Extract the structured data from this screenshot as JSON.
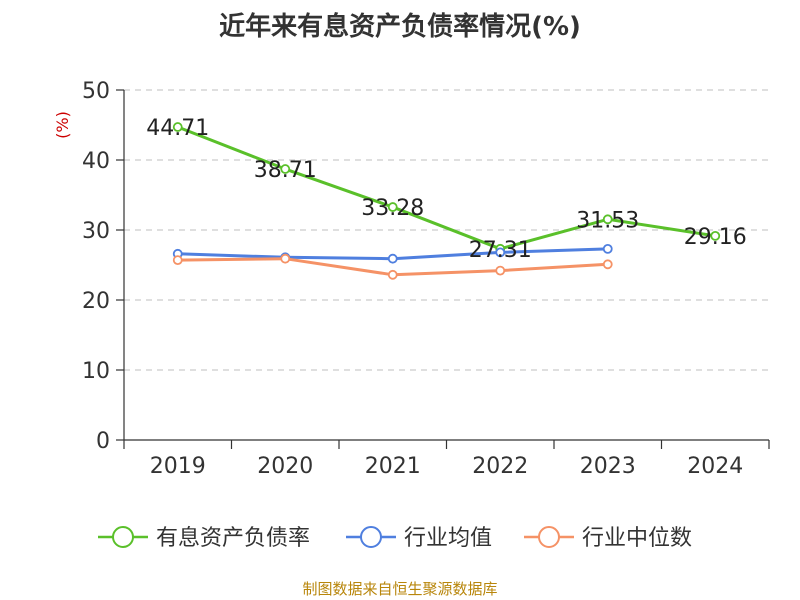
{
  "chart_data": {
    "type": "line",
    "title": "近年来有息资产负债率情况(%)",
    "ylabel": "(%)",
    "xlabel": "",
    "categories": [
      "2019",
      "2020",
      "2021",
      "2022",
      "2023",
      "2024"
    ],
    "yticks": [
      "0",
      "10",
      "20",
      "30",
      "40",
      "50"
    ],
    "ylim": [
      0,
      50
    ],
    "grid": true,
    "legend_position": "bottom",
    "series": [
      {
        "name": "有息资产负债率",
        "color": "#5ac02a",
        "values": [
          44.71,
          38.71,
          33.28,
          27.31,
          31.53,
          29.16
        ],
        "labels": [
          "44.71",
          "38.71",
          "33.28",
          "27.31",
          "31.53",
          "29.16"
        ]
      },
      {
        "name": "行业均值",
        "color": "#4f7fdf",
        "values": [
          26.6,
          26.1,
          25.9,
          26.8,
          27.3,
          null
        ]
      },
      {
        "name": "行业中位数",
        "color": "#f59266",
        "values": [
          25.7,
          25.9,
          23.6,
          24.2,
          25.1,
          null
        ]
      }
    ]
  },
  "footer": "制图数据来自恒生聚源数据库"
}
